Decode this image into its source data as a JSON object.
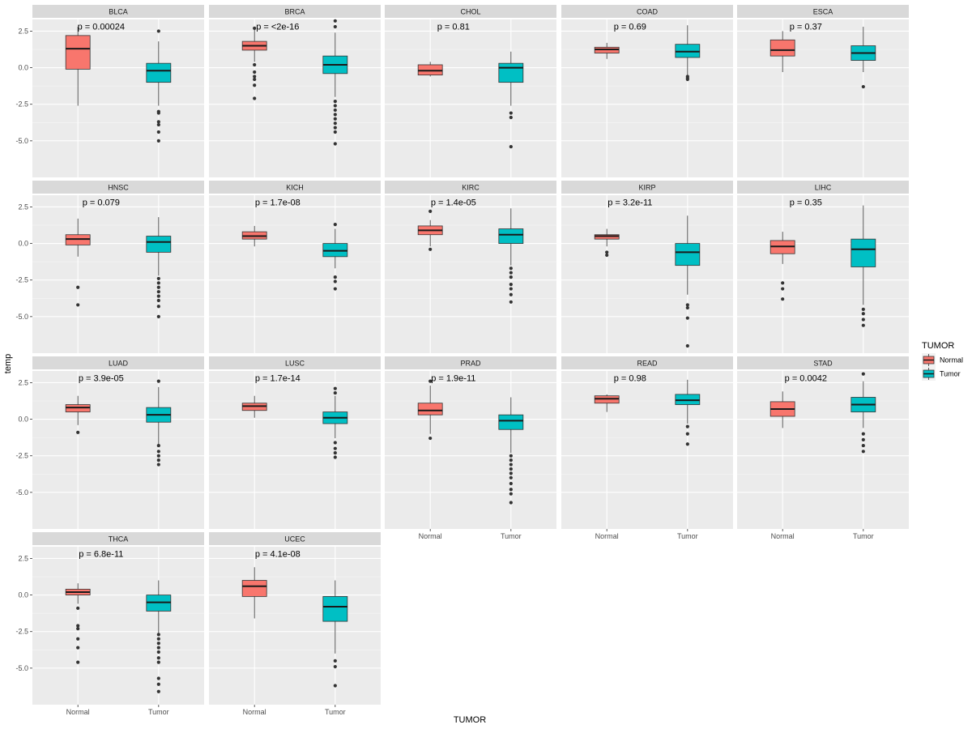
{
  "chart_data": {
    "type": "boxplot",
    "facet_wrap": true,
    "xlabel": "TUMOR",
    "ylabel": "temp",
    "categories": [
      "Normal",
      "Tumor"
    ],
    "ylim": [
      -7.5,
      3.3
    ],
    "y_ticks": [
      2.5,
      0.0,
      -2.5,
      -5.0
    ],
    "y_tick_labels": [
      "2.5",
      "0.0",
      "-2.5",
      "-5.0"
    ],
    "legend": {
      "title": "TUMOR",
      "position": "right",
      "entries": [
        {
          "name": "Normal",
          "color": "#F8766D"
        },
        {
          "name": "Tumor",
          "color": "#00BFC4"
        }
      ]
    },
    "colors": {
      "Normal": "#F8766D",
      "Tumor": "#00BFC4",
      "panel_bg": "#EBEBEB",
      "strip_bg": "#D9D9D9",
      "grid": "#FFFFFF"
    },
    "panels": [
      {
        "name": "BLCA",
        "p_label": "p = 0.00024",
        "boxes": {
          "Normal": {
            "min": -2.6,
            "q1": -0.1,
            "median": 1.3,
            "q3": 2.2,
            "max": 2.8,
            "outliers": []
          },
          "Tumor": {
            "min": -2.6,
            "q1": -1.0,
            "median": -0.2,
            "q3": 0.3,
            "max": 1.8,
            "outliers": [
              2.5,
              -3.0,
              -3.1,
              -3.7,
              -3.9,
              -4.4,
              -5.0
            ]
          }
        }
      },
      {
        "name": "BRCA",
        "p_label": "p = <2e-16",
        "boxes": {
          "Normal": {
            "min": 0.4,
            "q1": 1.2,
            "median": 1.5,
            "q3": 1.8,
            "max": 2.6,
            "outliers": [
              2.7,
              0.2,
              -0.3,
              -0.6,
              -0.8,
              -1.2,
              -2.1
            ]
          },
          "Tumor": {
            "min": -2.0,
            "q1": -0.4,
            "median": 0.2,
            "q3": 0.8,
            "max": 2.4,
            "outliers": [
              3.2,
              2.8,
              -2.3,
              -2.6,
              -2.9,
              -3.2,
              -3.5,
              -3.8,
              -4.1,
              -4.4,
              -5.2
            ]
          }
        }
      },
      {
        "name": "CHOL",
        "p_label": "p = 0.81",
        "boxes": {
          "Normal": {
            "min": -0.6,
            "q1": -0.5,
            "median": -0.2,
            "q3": 0.2,
            "max": 0.4,
            "outliers": []
          },
          "Tumor": {
            "min": -2.6,
            "q1": -1.0,
            "median": 0.0,
            "q3": 0.3,
            "max": 1.1,
            "outliers": [
              -3.1,
              -3.4,
              -5.4
            ]
          }
        }
      },
      {
        "name": "COAD",
        "p_label": "p = 0.69",
        "boxes": {
          "Normal": {
            "min": 0.6,
            "q1": 1.0,
            "median": 1.25,
            "q3": 1.4,
            "max": 1.7,
            "outliers": []
          },
          "Tumor": {
            "min": -0.5,
            "q1": 0.7,
            "median": 1.1,
            "q3": 1.6,
            "max": 2.9,
            "outliers": [
              -0.6,
              -0.7,
              -0.8
            ]
          }
        }
      },
      {
        "name": "ESCA",
        "p_label": "p = 0.37",
        "boxes": {
          "Normal": {
            "min": -0.3,
            "q1": 0.8,
            "median": 1.2,
            "q3": 1.9,
            "max": 2.5,
            "outliers": []
          },
          "Tumor": {
            "min": -0.3,
            "q1": 0.5,
            "median": 1.0,
            "q3": 1.5,
            "max": 2.8,
            "outliers": [
              -1.3
            ]
          }
        }
      },
      {
        "name": "HNSC",
        "p_label": "p = 0.079",
        "boxes": {
          "Normal": {
            "min": -0.9,
            "q1": -0.1,
            "median": 0.3,
            "q3": 0.6,
            "max": 1.7,
            "outliers": [
              -3.0,
              -4.2
            ]
          },
          "Tumor": {
            "min": -2.2,
            "q1": -0.6,
            "median": 0.1,
            "q3": 0.5,
            "max": 1.8,
            "outliers": [
              -2.4,
              -2.7,
              -3.0,
              -3.3,
              -3.6,
              -3.9,
              -4.3,
              -5.0
            ]
          }
        }
      },
      {
        "name": "KICH",
        "p_label": "p = 1.7e-08",
        "boxes": {
          "Normal": {
            "min": -0.2,
            "q1": 0.3,
            "median": 0.5,
            "q3": 0.8,
            "max": 1.2,
            "outliers": []
          },
          "Tumor": {
            "min": -1.7,
            "q1": -0.9,
            "median": -0.5,
            "q3": 0.0,
            "max": 1.0,
            "outliers": [
              1.3,
              -2.3,
              -2.6,
              -3.1
            ]
          }
        }
      },
      {
        "name": "KIRC",
        "p_label": "p = 1.4e-05",
        "boxes": {
          "Normal": {
            "min": -0.2,
            "q1": 0.6,
            "median": 0.9,
            "q3": 1.2,
            "max": 1.6,
            "outliers": [
              2.2,
              -0.4
            ]
          },
          "Tumor": {
            "min": -1.5,
            "q1": 0.0,
            "median": 0.6,
            "q3": 1.0,
            "max": 2.4,
            "outliers": [
              -1.7,
              -2.0,
              -2.3,
              -2.8,
              -3.1,
              -3.5,
              -4.0
            ]
          }
        }
      },
      {
        "name": "KIRP",
        "p_label": "p = 3.2e-11",
        "boxes": {
          "Normal": {
            "min": -0.2,
            "q1": 0.3,
            "median": 0.5,
            "q3": 0.6,
            "max": 1.0,
            "outliers": [
              -0.6,
              -0.8
            ]
          },
          "Tumor": {
            "min": -3.5,
            "q1": -1.5,
            "median": -0.6,
            "q3": 0.0,
            "max": 1.9,
            "outliers": [
              -4.2,
              -4.4,
              -5.1,
              -7.0
            ]
          }
        }
      },
      {
        "name": "LIHC",
        "p_label": "p = 0.35",
        "boxes": {
          "Normal": {
            "min": -1.4,
            "q1": -0.7,
            "median": -0.2,
            "q3": 0.2,
            "max": 0.8,
            "outliers": [
              -2.7,
              -3.1,
              -3.8
            ]
          },
          "Tumor": {
            "min": -4.2,
            "q1": -1.6,
            "median": -0.4,
            "q3": 0.3,
            "max": 2.6,
            "outliers": [
              -4.5,
              -4.8,
              -5.2,
              -5.6
            ]
          }
        }
      },
      {
        "name": "LUAD",
        "p_label": "p = 3.9e-05",
        "boxes": {
          "Normal": {
            "min": -0.4,
            "q1": 0.5,
            "median": 0.8,
            "q3": 1.0,
            "max": 1.6,
            "outliers": [
              -0.9
            ]
          },
          "Tumor": {
            "min": -1.7,
            "q1": -0.2,
            "median": 0.3,
            "q3": 0.8,
            "max": 2.2,
            "outliers": [
              2.6,
              -1.8,
              -2.2,
              -2.5,
              -2.8,
              -3.1
            ]
          }
        }
      },
      {
        "name": "LUSC",
        "p_label": "p = 1.7e-14",
        "boxes": {
          "Normal": {
            "min": 0.1,
            "q1": 0.6,
            "median": 0.9,
            "q3": 1.1,
            "max": 1.6,
            "outliers": []
          },
          "Tumor": {
            "min": -1.3,
            "q1": -0.3,
            "median": 0.1,
            "q3": 0.5,
            "max": 1.6,
            "outliers": [
              2.1,
              1.8,
              -1.6,
              -2.0,
              -2.3,
              -2.6
            ]
          }
        }
      },
      {
        "name": "PRAD",
        "p_label": "p = 1.9e-11",
        "boxes": {
          "Normal": {
            "min": -1.0,
            "q1": 0.3,
            "median": 0.6,
            "q3": 1.1,
            "max": 2.3,
            "outliers": [
              2.6,
              -1.3
            ]
          },
          "Tumor": {
            "min": -2.3,
            "q1": -0.7,
            "median": -0.1,
            "q3": 0.3,
            "max": 1.5,
            "outliers": [
              -2.5,
              -2.8,
              -3.1,
              -3.4,
              -3.7,
              -4.0,
              -4.4,
              -4.8,
              -5.1,
              -5.7
            ]
          }
        }
      },
      {
        "name": "READ",
        "p_label": "p = 0.98",
        "boxes": {
          "Normal": {
            "min": 0.5,
            "q1": 1.1,
            "median": 1.4,
            "q3": 1.6,
            "max": 1.7,
            "outliers": []
          },
          "Tumor": {
            "min": -0.3,
            "q1": 1.0,
            "median": 1.3,
            "q3": 1.7,
            "max": 2.7,
            "outliers": [
              -0.5,
              -1.0,
              -1.7
            ]
          }
        }
      },
      {
        "name": "STAD",
        "p_label": "p = 0.0042",
        "boxes": {
          "Normal": {
            "min": -0.6,
            "q1": 0.2,
            "median": 0.7,
            "q3": 1.2,
            "max": 1.9,
            "outliers": []
          },
          "Tumor": {
            "min": -0.6,
            "q1": 0.5,
            "median": 1.0,
            "q3": 1.5,
            "max": 2.6,
            "outliers": [
              3.1,
              -1.0,
              -1.4,
              -1.8,
              -2.2
            ]
          }
        }
      },
      {
        "name": "THCA",
        "p_label": "p = 6.8e-11",
        "boxes": {
          "Normal": {
            "min": -0.6,
            "q1": 0.0,
            "median": 0.2,
            "q3": 0.4,
            "max": 0.8,
            "outliers": [
              -0.9,
              -2.1,
              -2.3,
              -3.0,
              -3.6,
              -4.6
            ]
          },
          "Tumor": {
            "min": -2.6,
            "q1": -1.1,
            "median": -0.5,
            "q3": 0.0,
            "max": 1.0,
            "outliers": [
              -2.7,
              -3.0,
              -3.3,
              -3.6,
              -3.9,
              -4.3,
              -4.6,
              -5.7,
              -6.1,
              -6.6
            ]
          }
        }
      },
      {
        "name": "UCEC",
        "p_label": "p = 4.1e-08",
        "boxes": {
          "Normal": {
            "min": -1.6,
            "q1": -0.1,
            "median": 0.6,
            "q3": 1.0,
            "max": 1.9,
            "outliers": []
          },
          "Tumor": {
            "min": -4.0,
            "q1": -1.8,
            "median": -0.8,
            "q3": -0.1,
            "max": 1.0,
            "outliers": [
              -4.5,
              -4.9,
              -6.2
            ]
          }
        }
      }
    ]
  }
}
